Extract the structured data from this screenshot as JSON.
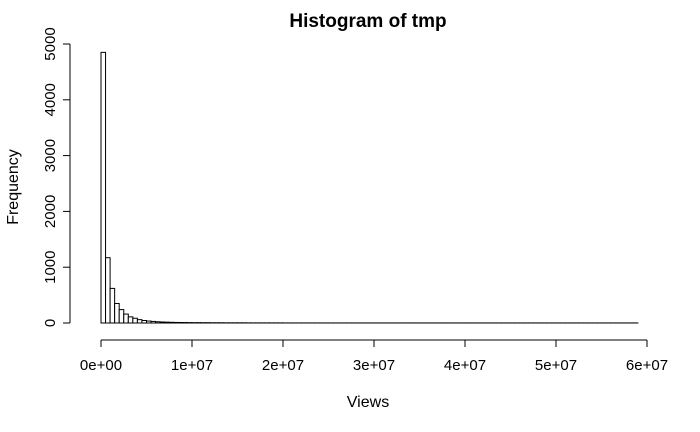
{
  "chart_data": {
    "type": "bar",
    "title": "Histogram of tmp",
    "xlabel": "Views",
    "ylabel": "Frequency",
    "bin_width": 500000,
    "x_start": 0,
    "xlim": [
      0,
      60000000
    ],
    "ylim": [
      0,
      5000
    ],
    "x_ticks": [
      0,
      10000000,
      20000000,
      30000000,
      40000000,
      50000000,
      60000000
    ],
    "x_tick_labels": [
      "0e+00",
      "1e+07",
      "2e+07",
      "3e+07",
      "4e+07",
      "5e+07",
      "6e+07"
    ],
    "y_ticks": [
      0,
      1000,
      2000,
      3000,
      4000,
      5000
    ],
    "y_tick_labels": [
      "0",
      "1000",
      "2000",
      "3000",
      "4000",
      "5000"
    ],
    "values": [
      4850,
      1170,
      620,
      350,
      240,
      160,
      110,
      85,
      60,
      45,
      35,
      28,
      22,
      18,
      15,
      12,
      10,
      9,
      8,
      7,
      6,
      6,
      5,
      5,
      4,
      4,
      4,
      3,
      3,
      3,
      3,
      3,
      2,
      2,
      2,
      2,
      2,
      2,
      2,
      2,
      1,
      1,
      1,
      1,
      1,
      1,
      1,
      1,
      1,
      1,
      1,
      1,
      1,
      1,
      1,
      1,
      1,
      1,
      1,
      1,
      1,
      1,
      1,
      1,
      1,
      1,
      1,
      1,
      1,
      1,
      1,
      1,
      1,
      1,
      1,
      1,
      1,
      1,
      1,
      1,
      1,
      1,
      1,
      1,
      1,
      1,
      1,
      1,
      1,
      1,
      1,
      1,
      1,
      1,
      1,
      1,
      1,
      1,
      1,
      1,
      1,
      1,
      1,
      1,
      1,
      1,
      1,
      1,
      1,
      1,
      1,
      1,
      1,
      1,
      1,
      1,
      1,
      1
    ],
    "grid": false,
    "legend": "none"
  }
}
